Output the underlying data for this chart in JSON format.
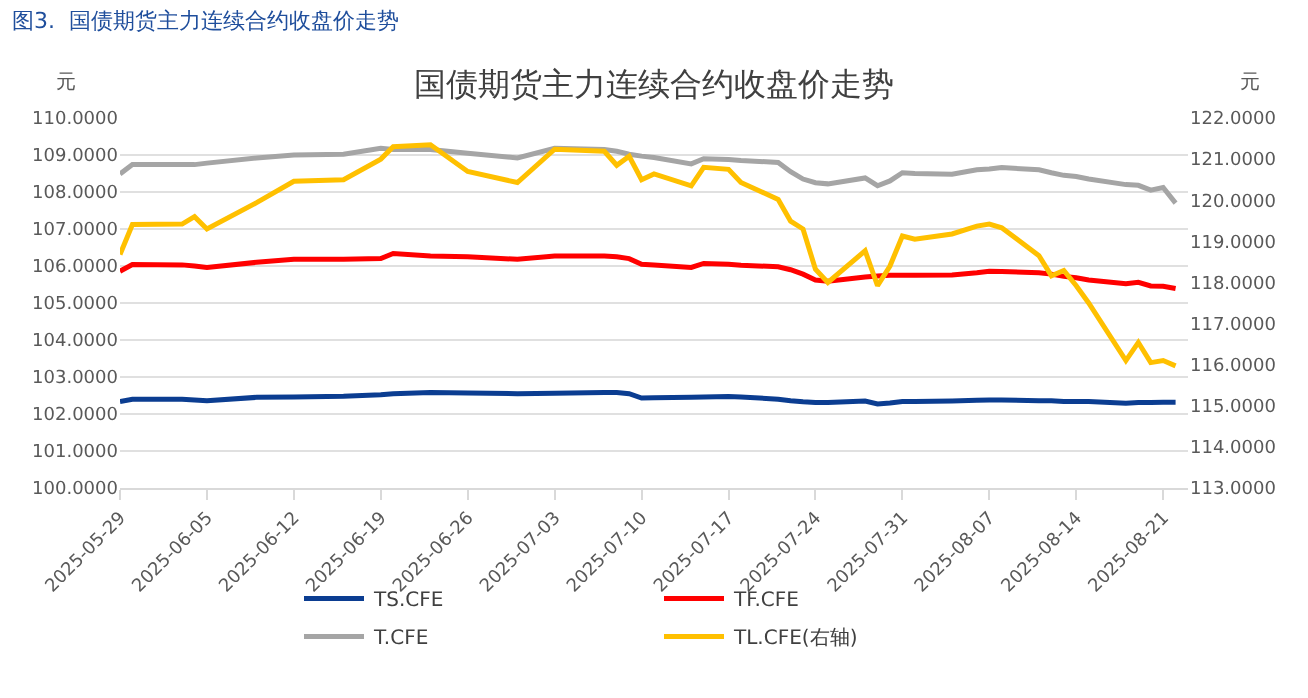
{
  "chart_data": {
    "type": "line",
    "title": "国债期货主力连续合约收盘价走势",
    "ylabel": "元",
    "y2label": "元",
    "annotations": [
      "图3.  国债期货主力连续合约收盘价走势"
    ],
    "x": [
      "2025-05-29",
      "2025-05-30",
      "2025-06-03",
      "2025-06-04",
      "2025-06-05",
      "2025-06-09",
      "2025-06-12",
      "2025-06-16",
      "2025-06-19",
      "2025-06-20",
      "2025-06-23",
      "2025-06-26",
      "2025-06-30",
      "2025-07-03",
      "2025-07-07",
      "2025-07-08",
      "2025-07-09",
      "2025-07-10",
      "2025-07-11",
      "2025-07-14",
      "2025-07-15",
      "2025-07-17",
      "2025-07-18",
      "2025-07-21",
      "2025-07-22",
      "2025-07-23",
      "2025-07-24",
      "2025-07-25",
      "2025-07-28",
      "2025-07-29",
      "2025-07-30",
      "2025-07-31",
      "2025-08-01",
      "2025-08-04",
      "2025-08-06",
      "2025-08-07",
      "2025-08-08",
      "2025-08-11",
      "2025-08-12",
      "2025-08-13",
      "2025-08-14",
      "2025-08-15",
      "2025-08-18",
      "2025-08-19",
      "2025-08-20",
      "2025-08-21",
      "2025-08-22"
    ],
    "series": [
      {
        "name": "TS.CFE",
        "color": "#0b3d91",
        "values": [
          102.34,
          102.4,
          102.4,
          102.38,
          102.36,
          102.45,
          102.46,
          102.48,
          102.52,
          102.55,
          102.58,
          102.57,
          102.55,
          102.56,
          102.58,
          102.58,
          102.55,
          102.43,
          102.44,
          102.45,
          102.46,
          102.47,
          102.46,
          102.4,
          102.36,
          102.33,
          102.31,
          102.31,
          102.35,
          102.27,
          102.3,
          102.34,
          102.34,
          102.35,
          102.37,
          102.38,
          102.38,
          102.36,
          102.36,
          102.34,
          102.34,
          102.34,
          102.29,
          102.31,
          102.31,
          102.32,
          102.32
        ]
      },
      {
        "name": "TF.CFE",
        "color": "#ff0000",
        "values": [
          105.86,
          106.04,
          106.03,
          106.0,
          105.96,
          106.1,
          106.18,
          106.18,
          106.2,
          106.34,
          106.27,
          106.25,
          106.18,
          106.27,
          106.27,
          106.25,
          106.2,
          106.05,
          106.03,
          105.96,
          106.07,
          106.05,
          106.02,
          105.98,
          105.9,
          105.78,
          105.62,
          105.59,
          105.7,
          105.73,
          105.75,
          105.75,
          105.75,
          105.76,
          105.82,
          105.86,
          105.85,
          105.82,
          105.78,
          105.72,
          105.68,
          105.62,
          105.52,
          105.56,
          105.46,
          105.45,
          105.39
        ]
      },
      {
        "name": "T.CFE",
        "color": "#a5a5a5",
        "values": [
          108.49,
          108.74,
          108.74,
          108.74,
          108.78,
          108.92,
          109.0,
          109.02,
          109.18,
          109.15,
          109.15,
          109.05,
          108.92,
          109.18,
          109.15,
          109.1,
          109.02,
          108.97,
          108.93,
          108.76,
          108.9,
          108.88,
          108.85,
          108.8,
          108.55,
          108.35,
          108.25,
          108.22,
          108.38,
          108.17,
          108.3,
          108.52,
          108.5,
          108.48,
          108.6,
          108.62,
          108.66,
          108.6,
          108.52,
          108.45,
          108.42,
          108.35,
          108.2,
          108.18,
          108.05,
          108.12,
          107.7
        ]
      },
      {
        "name": "TL.CFE(右轴)",
        "color": "#ffc000",
        "axis": "y2",
        "values": [
          118.68,
          119.41,
          119.42,
          119.6,
          119.3,
          119.94,
          120.46,
          120.5,
          121.0,
          121.3,
          121.35,
          120.7,
          120.43,
          121.24,
          121.19,
          120.85,
          121.07,
          120.5,
          120.64,
          120.35,
          120.8,
          120.75,
          120.43,
          120.02,
          119.49,
          119.3,
          118.32,
          118.0,
          118.77,
          117.92,
          118.4,
          119.13,
          119.05,
          119.18,
          119.37,
          119.42,
          119.33,
          118.65,
          118.16,
          118.29,
          117.92,
          117.5,
          116.1,
          116.54,
          116.05,
          116.1,
          115.97
        ]
      }
    ],
    "xlim": [
      "2025-05-29",
      "2025-08-23"
    ],
    "xticks": [
      "2025-05-29",
      "2025-06-05",
      "2025-06-12",
      "2025-06-19",
      "2025-06-26",
      "2025-07-03",
      "2025-07-10",
      "2025-07-17",
      "2025-07-24",
      "2025-07-31",
      "2025-08-07",
      "2025-08-14",
      "2025-08-21"
    ],
    "ylim": [
      100,
      110
    ],
    "yticks": [
      {
        "value": 100,
        "label": "100.0000"
      },
      {
        "value": 101,
        "label": "101.0000"
      },
      {
        "value": 102,
        "label": "102.0000"
      },
      {
        "value": 103,
        "label": "103.0000"
      },
      {
        "value": 104,
        "label": "104.0000"
      },
      {
        "value": 105,
        "label": "105.0000"
      },
      {
        "value": 106,
        "label": "106.0000"
      },
      {
        "value": 107,
        "label": "107.0000"
      },
      {
        "value": 108,
        "label": "108.0000"
      },
      {
        "value": 109,
        "label": "109.0000"
      },
      {
        "value": 110,
        "label": "110.0000"
      }
    ],
    "y2lim": [
      113,
      122
    ],
    "y2ticks": [
      {
        "value": 113,
        "label": "113.0000"
      },
      {
        "value": 114,
        "label": "114.0000"
      },
      {
        "value": 115,
        "label": "115.0000"
      },
      {
        "value": 116,
        "label": "116.0000"
      },
      {
        "value": 117,
        "label": "117.0000"
      },
      {
        "value": 118,
        "label": "118.0000"
      },
      {
        "value": 119,
        "label": "119.0000"
      },
      {
        "value": 120,
        "label": "120.0000"
      },
      {
        "value": 121,
        "label": "121.0000"
      },
      {
        "value": 122,
        "label": "122.0000"
      }
    ],
    "grid": "y",
    "legend": "bottom",
    "marker": "none",
    "line_style": "solid"
  }
}
